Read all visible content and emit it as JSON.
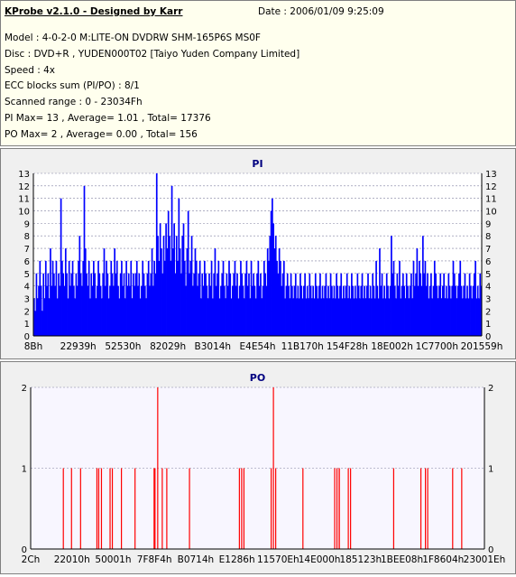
{
  "header": {
    "title": "KProbe v2.1.0 - Designed by Karr",
    "date": "Date : 2006/01/09 9:25:09",
    "lines": [
      "Model : 4-0-2-0 M:LITE-ON DVDRW SHM-165P6S MS0F",
      "Disc : DVD+R , YUDEN000T02 [Taiyo Yuden Company Limited]",
      "Speed : 4x",
      "ECC blocks sum (PI/PO) : 8/1",
      "Scanned range : 0 - 23034Fh",
      "PI Max= 13 , Average= 1.01 , Total= 17376",
      "PO Max= 2 , Average= 0.00 , Total= 156"
    ]
  },
  "chart_data": [
    {
      "type": "bar",
      "title": "PI",
      "color": "#0000ff",
      "ylim": [
        0,
        13
      ],
      "yticks": [
        "0",
        "1",
        "2",
        "3",
        "4",
        "5",
        "6",
        "7",
        "8",
        "9",
        "10",
        "11",
        "12",
        "13"
      ],
      "xticks": [
        "8Bh",
        "22939h",
        "52530h",
        "82029h",
        "B3014h",
        "E4E54h",
        "11B170h",
        "154F28h",
        "18E002h",
        "1C7700h",
        "201559h"
      ],
      "x_range": [
        "0h",
        "23034Fh"
      ],
      "values": [
        3,
        2,
        5,
        3,
        4,
        6,
        4,
        2,
        5,
        3,
        6,
        4,
        5,
        3,
        7,
        4,
        6,
        5,
        4,
        6,
        3,
        5,
        4,
        11,
        6,
        5,
        4,
        7,
        5,
        3,
        6,
        4,
        5,
        6,
        4,
        3,
        5,
        4,
        6,
        8,
        5,
        4,
        6,
        12,
        7,
        5,
        4,
        6,
        3,
        5,
        4,
        6,
        5,
        3,
        4,
        6,
        5,
        4,
        3,
        5,
        7,
        4,
        6,
        5,
        3,
        4,
        6,
        5,
        4,
        7,
        5,
        6,
        4,
        3,
        5,
        6,
        4,
        5,
        3,
        6,
        4,
        5,
        4,
        6,
        3,
        5,
        4,
        5,
        6,
        4,
        5,
        3,
        4,
        6,
        5,
        4,
        3,
        5,
        6,
        4,
        5,
        7,
        4,
        6,
        5,
        13,
        8,
        6,
        9,
        7,
        5,
        8,
        6,
        9,
        7,
        10,
        8,
        6,
        12,
        7,
        9,
        5,
        8,
        6,
        11,
        7,
        5,
        8,
        9,
        6,
        4,
        7,
        10,
        5,
        6,
        8,
        4,
        5,
        7,
        6,
        4,
        5,
        6,
        3,
        5,
        4,
        6,
        5,
        4,
        3,
        5,
        4,
        6,
        3,
        5,
        7,
        4,
        5,
        6,
        3,
        4,
        5,
        6,
        4,
        3,
        5,
        4,
        6,
        5,
        3,
        4,
        5,
        6,
        4,
        5,
        3,
        4,
        6,
        5,
        4,
        3,
        5,
        6,
        4,
        5,
        3,
        6,
        4,
        5,
        4,
        3,
        5,
        6,
        4,
        5,
        3,
        4,
        6,
        5,
        4,
        7,
        6,
        8,
        10,
        11,
        9,
        7,
        8,
        6,
        5,
        7,
        6,
        4,
        5,
        6,
        3,
        4,
        5,
        4,
        3,
        5,
        4,
        3,
        4,
        5,
        3,
        4,
        3,
        5,
        4,
        3,
        4,
        5,
        3,
        4,
        3,
        5,
        4,
        3,
        4,
        3,
        5,
        4,
        3,
        4,
        5,
        3,
        4,
        3,
        4,
        5,
        3,
        4,
        3,
        5,
        4,
        3,
        4,
        3,
        5,
        4,
        3,
        4,
        5,
        3,
        4,
        3,
        4,
        5,
        3,
        4,
        3,
        5,
        4,
        3,
        4,
        3,
        5,
        4,
        3,
        4,
        5,
        3,
        4,
        3,
        4,
        5,
        3,
        4,
        3,
        5,
        4,
        3,
        6,
        4,
        3,
        7,
        4,
        5,
        3,
        4,
        3,
        5,
        4,
        3,
        4,
        8,
        5,
        6,
        4,
        3,
        5,
        4,
        6,
        3,
        4,
        5,
        4,
        3,
        5,
        4,
        3,
        4,
        5,
        3,
        6,
        4,
        5,
        7,
        4,
        6,
        5,
        4,
        8,
        5,
        6,
        4,
        5,
        3,
        4,
        5,
        3,
        4,
        6,
        5,
        4,
        3,
        4,
        5,
        3,
        4,
        5,
        3,
        4,
        3,
        5,
        4,
        3,
        4,
        6,
        5,
        4,
        3,
        4,
        5,
        6,
        4,
        3,
        4,
        5,
        3,
        4,
        3,
        5,
        4,
        3,
        4,
        5,
        6,
        3,
        4,
        3,
        5,
        4
      ],
      "series": [
        {
          "name": "",
          "values": []
        }
      ]
    },
    {
      "type": "bar",
      "title": "PO",
      "color": "#ff0000",
      "ylim": [
        0,
        2
      ],
      "yticks": [
        "0",
        "1",
        "2"
      ],
      "xticks": [
        "2Ch",
        "22010h",
        "50001h",
        "7F8F4h",
        "B0714h",
        "E1286h",
        "11570Eh",
        "14E000h",
        "185123h",
        "1BEE08h",
        "1F8604h",
        "23001Eh"
      ],
      "x_range": [
        "0h",
        "23034Fh"
      ],
      "points": [
        {
          "x": 0.072,
          "y": 1
        },
        {
          "x": 0.09,
          "y": 1
        },
        {
          "x": 0.11,
          "y": 1
        },
        {
          "x": 0.146,
          "y": 1
        },
        {
          "x": 0.15,
          "y": 1
        },
        {
          "x": 0.156,
          "y": 1
        },
        {
          "x": 0.175,
          "y": 1
        },
        {
          "x": 0.18,
          "y": 1
        },
        {
          "x": 0.2,
          "y": 1
        },
        {
          "x": 0.23,
          "y": 1
        },
        {
          "x": 0.272,
          "y": 1
        },
        {
          "x": 0.274,
          "y": 1
        },
        {
          "x": 0.28,
          "y": 2
        },
        {
          "x": 0.29,
          "y": 1
        },
        {
          "x": 0.3,
          "y": 1
        },
        {
          "x": 0.35,
          "y": 1
        },
        {
          "x": 0.46,
          "y": 1
        },
        {
          "x": 0.465,
          "y": 1
        },
        {
          "x": 0.47,
          "y": 1
        },
        {
          "x": 0.53,
          "y": 1
        },
        {
          "x": 0.535,
          "y": 2
        },
        {
          "x": 0.54,
          "y": 1
        },
        {
          "x": 0.6,
          "y": 1
        },
        {
          "x": 0.67,
          "y": 1
        },
        {
          "x": 0.675,
          "y": 1
        },
        {
          "x": 0.68,
          "y": 1
        },
        {
          "x": 0.68,
          "y": 1
        },
        {
          "x": 0.7,
          "y": 1
        },
        {
          "x": 0.705,
          "y": 1
        },
        {
          "x": 0.8,
          "y": 1
        },
        {
          "x": 0.86,
          "y": 1
        },
        {
          "x": 0.87,
          "y": 1
        },
        {
          "x": 0.875,
          "y": 1
        },
        {
          "x": 0.93,
          "y": 1
        },
        {
          "x": 0.95,
          "y": 1
        }
      ]
    }
  ]
}
